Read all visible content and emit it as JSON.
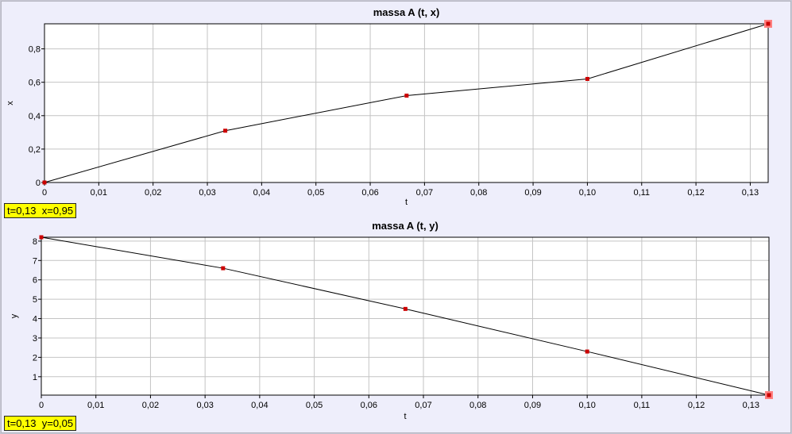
{
  "chart_data": [
    {
      "type": "line",
      "title": "massa A (t, x)",
      "xlabel": "t",
      "ylabel": "x",
      "x": [
        0,
        0.0333,
        0.0667,
        0.1,
        0.1333
      ],
      "y": [
        0,
        0.31,
        0.52,
        0.62,
        0.95
      ],
      "xlim": [
        0,
        0.1333
      ],
      "ylim": [
        0,
        0.95
      ],
      "xticks": [
        0,
        0.01,
        0.02,
        0.03,
        0.04,
        0.05,
        0.06,
        0.07,
        0.08,
        0.09,
        0.1,
        0.11,
        0.12,
        0.13
      ],
      "xtick_labels": [
        "0",
        "0,01",
        "0,02",
        "0,03",
        "0,04",
        "0,05",
        "0,06",
        "0,07",
        "0,08",
        "0,09",
        "0,10",
        "0,11",
        "0,12",
        "0,13"
      ],
      "yticks": [
        0,
        0.2,
        0.4,
        0.6,
        0.8
      ],
      "ytick_labels": [
        "0",
        "0,2",
        "0,4",
        "0,6",
        "0,8"
      ],
      "grid": true,
      "line_color": "#000000",
      "marker_color": "#cc0000",
      "highlight_color": "#ff8080",
      "readout": "t=0,13  x=0,95"
    },
    {
      "type": "line",
      "title": "massa A (t, y)",
      "xlabel": "t",
      "ylabel": "y",
      "x": [
        0,
        0.0333,
        0.0667,
        0.1,
        0.1333
      ],
      "y": [
        8.2,
        6.6,
        4.5,
        2.3,
        0.05
      ],
      "xlim": [
        0,
        0.1333
      ],
      "ylim": [
        0.05,
        8.2
      ],
      "xticks": [
        0,
        0.01,
        0.02,
        0.03,
        0.04,
        0.05,
        0.06,
        0.07,
        0.08,
        0.09,
        0.1,
        0.11,
        0.12,
        0.13
      ],
      "xtick_labels": [
        "0",
        "0,01",
        "0,02",
        "0,03",
        "0,04",
        "0,05",
        "0,06",
        "0,07",
        "0,08",
        "0,09",
        "0,10",
        "0,11",
        "0,12",
        "0,13"
      ],
      "yticks": [
        1,
        2,
        3,
        4,
        5,
        6,
        7,
        8
      ],
      "ytick_labels": [
        "1",
        "2",
        "3",
        "4",
        "5",
        "6",
        "7",
        "8"
      ],
      "grid": true,
      "line_color": "#000000",
      "marker_color": "#cc0000",
      "highlight_color": "#ff8080",
      "readout": "t=0,13  y=0,05"
    }
  ]
}
